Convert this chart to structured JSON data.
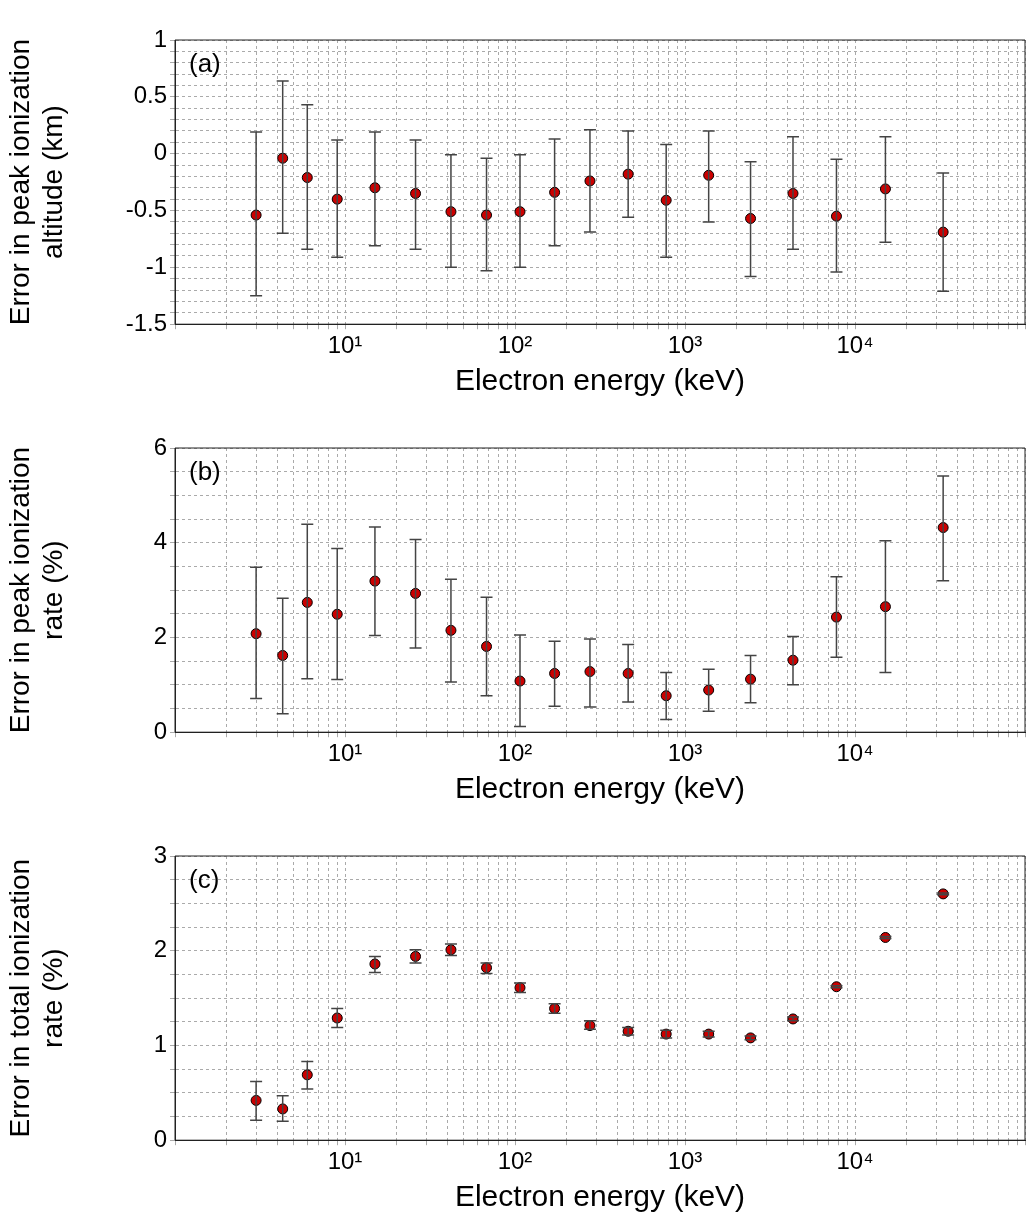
{
  "chart_data": [
    {
      "type": "scatter",
      "xlabel": "Electron energy (keV)",
      "ylabel": "Error in peak ionization altitude (km)",
      "annotations": [
        "(a)"
      ],
      "log": "x",
      "grid": true,
      "marker": "circle",
      "x": [
        3,
        4.3,
        6,
        9,
        15,
        26,
        42,
        68,
        107,
        171,
        276,
        463,
        775,
        1378,
        2430,
        4318,
        7780,
        15100,
        33000
      ],
      "xlim": [
        1,
        100000
      ],
      "xticks": [
        {
          "value": 1,
          "label": null
        },
        {
          "value": 2,
          "label": null
        },
        {
          "value": 3,
          "label": null
        },
        {
          "value": 4,
          "label": null
        },
        {
          "value": 5,
          "label": null
        },
        {
          "value": 6,
          "label": null
        },
        {
          "value": 7,
          "label": null
        },
        {
          "value": 8,
          "label": null
        },
        {
          "value": 9,
          "label": null
        },
        {
          "value": 10,
          "label": "10¹"
        },
        {
          "value": 20,
          "label": null
        },
        {
          "value": 30,
          "label": null
        },
        {
          "value": 40,
          "label": null
        },
        {
          "value": 50,
          "label": null
        },
        {
          "value": 60,
          "label": null
        },
        {
          "value": 70,
          "label": null
        },
        {
          "value": 80,
          "label": null
        },
        {
          "value": 90,
          "label": null
        },
        {
          "value": 100,
          "label": "10²"
        },
        {
          "value": 200,
          "label": null
        },
        {
          "value": 300,
          "label": null
        },
        {
          "value": 400,
          "label": null
        },
        {
          "value": 500,
          "label": null
        },
        {
          "value": 600,
          "label": null
        },
        {
          "value": 700,
          "label": null
        },
        {
          "value": 800,
          "label": null
        },
        {
          "value": 900,
          "label": null
        },
        {
          "value": 1000,
          "label": "10³"
        },
        {
          "value": 2000,
          "label": null
        },
        {
          "value": 3000,
          "label": null
        },
        {
          "value": 4000,
          "label": null
        },
        {
          "value": 5000,
          "label": null
        },
        {
          "value": 6000,
          "label": null
        },
        {
          "value": 7000,
          "label": null
        },
        {
          "value": 8000,
          "label": null
        },
        {
          "value": 9000,
          "label": null
        },
        {
          "value": 10000,
          "label": "10⁴"
        },
        {
          "value": 20000,
          "label": null
        },
        {
          "value": 30000,
          "label": null
        },
        {
          "value": 40000,
          "label": null
        },
        {
          "value": 50000,
          "label": null
        },
        {
          "value": 60000,
          "label": null
        },
        {
          "value": 70000,
          "label": null
        },
        {
          "value": 80000,
          "label": null
        },
        {
          "value": 90000,
          "label": null
        },
        {
          "value": 100000,
          "label": null
        }
      ],
      "ylim": [
        -1.5,
        1
      ],
      "yticks": [
        -1.5,
        {
          "value": -1.4,
          "label": null
        },
        {
          "value": -1.3,
          "label": null
        },
        {
          "value": -1.2,
          "label": null
        },
        {
          "value": -1.1,
          "label": null
        },
        -1,
        {
          "value": -0.9,
          "label": null
        },
        {
          "value": -0.8,
          "label": null
        },
        {
          "value": -0.7,
          "label": null
        },
        {
          "value": -0.6,
          "label": null
        },
        -0.5,
        {
          "value": -0.4,
          "label": null
        },
        {
          "value": -0.3,
          "label": null
        },
        {
          "value": -0.2,
          "label": null
        },
        {
          "value": -0.1,
          "label": null
        },
        0,
        {
          "value": 0.1,
          "label": null
        },
        {
          "value": 0.2,
          "label": null
        },
        {
          "value": 0.3,
          "label": null
        },
        {
          "value": 0.4,
          "label": null
        },
        0.5,
        {
          "value": 0.6,
          "label": null
        },
        {
          "value": 0.7,
          "label": null
        },
        {
          "value": 0.8,
          "label": null
        },
        {
          "value": 0.9,
          "label": null
        },
        1
      ],
      "series": [
        {
          "color": "#cc0000",
          "values": [
            -0.54,
            -0.04,
            -0.21,
            -0.4,
            -0.3,
            -0.35,
            -0.51,
            -0.54,
            -0.51,
            -0.34,
            -0.24,
            -0.18,
            -0.41,
            -0.19,
            -0.57,
            -0.35,
            -0.55,
            -0.31,
            -0.69
          ],
          "errors": [
            [
              -1.25,
              0.19
            ],
            [
              -0.7,
              0.64
            ],
            [
              -0.84,
              0.43
            ],
            [
              -0.91,
              0.12
            ],
            [
              -0.81,
              0.19
            ],
            [
              -0.84,
              0.12
            ],
            [
              -1,
              -0.01
            ],
            [
              -1.03,
              -0.04
            ],
            [
              -1,
              -0.01
            ],
            [
              -0.81,
              0.13
            ],
            [
              -0.69,
              0.21
            ],
            [
              -0.56,
              0.2
            ],
            [
              -0.91,
              0.08
            ],
            [
              -0.6,
              0.2
            ],
            [
              -1.08,
              -0.07
            ],
            [
              -0.84,
              0.15
            ],
            [
              -1.04,
              -0.05
            ],
            [
              -0.78,
              0.15
            ],
            [
              -1.21,
              -0.17
            ]
          ]
        }
      ]
    },
    {
      "type": "scatter",
      "xlabel": "Electron energy (keV)",
      "ylabel": "Error in peak ionization rate (%)",
      "annotations": [
        "(b)"
      ],
      "log": "x",
      "grid": true,
      "marker": "circle",
      "x": [
        3,
        4.3,
        6,
        9,
        15,
        26,
        42,
        68,
        107,
        171,
        276,
        463,
        775,
        1378,
        2430,
        4318,
        7780,
        15100,
        33000
      ],
      "xlim": [
        1,
        100000
      ],
      "xticks": [
        {
          "value": 1,
          "label": null
        },
        {
          "value": 2,
          "label": null
        },
        {
          "value": 3,
          "label": null
        },
        {
          "value": 4,
          "label": null
        },
        {
          "value": 5,
          "label": null
        },
        {
          "value": 6,
          "label": null
        },
        {
          "value": 7,
          "label": null
        },
        {
          "value": 8,
          "label": null
        },
        {
          "value": 9,
          "label": null
        },
        {
          "value": 10,
          "label": "10¹"
        },
        {
          "value": 20,
          "label": null
        },
        {
          "value": 30,
          "label": null
        },
        {
          "value": 40,
          "label": null
        },
        {
          "value": 50,
          "label": null
        },
        {
          "value": 60,
          "label": null
        },
        {
          "value": 70,
          "label": null
        },
        {
          "value": 80,
          "label": null
        },
        {
          "value": 90,
          "label": null
        },
        {
          "value": 100,
          "label": "10²"
        },
        {
          "value": 200,
          "label": null
        },
        {
          "value": 300,
          "label": null
        },
        {
          "value": 400,
          "label": null
        },
        {
          "value": 500,
          "label": null
        },
        {
          "value": 600,
          "label": null
        },
        {
          "value": 700,
          "label": null
        },
        {
          "value": 800,
          "label": null
        },
        {
          "value": 900,
          "label": null
        },
        {
          "value": 1000,
          "label": "10³"
        },
        {
          "value": 2000,
          "label": null
        },
        {
          "value": 3000,
          "label": null
        },
        {
          "value": 4000,
          "label": null
        },
        {
          "value": 5000,
          "label": null
        },
        {
          "value": 6000,
          "label": null
        },
        {
          "value": 7000,
          "label": null
        },
        {
          "value": 8000,
          "label": null
        },
        {
          "value": 9000,
          "label": null
        },
        {
          "value": 10000,
          "label": "10⁴"
        },
        {
          "value": 20000,
          "label": null
        },
        {
          "value": 30000,
          "label": null
        },
        {
          "value": 40000,
          "label": null
        },
        {
          "value": 50000,
          "label": null
        },
        {
          "value": 60000,
          "label": null
        },
        {
          "value": 70000,
          "label": null
        },
        {
          "value": 80000,
          "label": null
        },
        {
          "value": 90000,
          "label": null
        },
        {
          "value": 100000,
          "label": null
        }
      ],
      "ylim": [
        0,
        6
      ],
      "yticks": [
        0,
        {
          "value": 0.5,
          "label": null
        },
        {
          "value": 1,
          "label": null
        },
        {
          "value": 1.5,
          "label": null
        },
        2,
        {
          "value": 2.5,
          "label": null
        },
        {
          "value": 3,
          "label": null
        },
        {
          "value": 3.5,
          "label": null
        },
        4,
        {
          "value": 4.5,
          "label": null
        },
        {
          "value": 5,
          "label": null
        },
        {
          "value": 5.5,
          "label": null
        },
        6
      ],
      "series": [
        {
          "color": "#cc0000",
          "values": [
            2.08,
            1.62,
            2.74,
            2.49,
            3.19,
            2.93,
            2.15,
            1.81,
            1.08,
            1.24,
            1.28,
            1.24,
            0.77,
            0.89,
            1.12,
            1.52,
            2.43,
            2.65,
            4.32
          ],
          "errors": [
            [
              0.71,
              3.48
            ],
            [
              0.39,
              2.83
            ],
            [
              1.13,
              4.39
            ],
            [
              1.11,
              3.88
            ],
            [
              2.04,
              4.33
            ],
            [
              1.78,
              4.07
            ],
            [
              1.06,
              3.23
            ],
            [
              0.77,
              2.85
            ],
            [
              0.12,
              2.05
            ],
            [
              0.55,
              1.92
            ],
            [
              0.53,
              1.97
            ],
            [
              0.64,
              1.85
            ],
            [
              0.27,
              1.26
            ],
            [
              0.44,
              1.33
            ],
            [
              0.62,
              1.62
            ],
            [
              1,
              2.02
            ],
            [
              1.58,
              3.28
            ],
            [
              1.26,
              4.04
            ],
            [
              3.2,
              5.41
            ]
          ]
        }
      ]
    },
    {
      "type": "scatter",
      "xlabel": "Electron energy (keV)",
      "ylabel": "Error in total ionization rate (%)",
      "annotations": [
        "(c)"
      ],
      "log": "x",
      "grid": true,
      "marker": "circle",
      "x": [
        3,
        4.3,
        6,
        9,
        15,
        26,
        42,
        68,
        107,
        171,
        276,
        463,
        775,
        1378,
        2430,
        4318,
        7780,
        15100,
        33000
      ],
      "xlim": [
        1,
        100000
      ],
      "xticks": [
        {
          "value": 1,
          "label": null
        },
        {
          "value": 2,
          "label": null
        },
        {
          "value": 3,
          "label": null
        },
        {
          "value": 4,
          "label": null
        },
        {
          "value": 5,
          "label": null
        },
        {
          "value": 6,
          "label": null
        },
        {
          "value": 7,
          "label": null
        },
        {
          "value": 8,
          "label": null
        },
        {
          "value": 9,
          "label": null
        },
        {
          "value": 10,
          "label": "10¹"
        },
        {
          "value": 20,
          "label": null
        },
        {
          "value": 30,
          "label": null
        },
        {
          "value": 40,
          "label": null
        },
        {
          "value": 50,
          "label": null
        },
        {
          "value": 60,
          "label": null
        },
        {
          "value": 70,
          "label": null
        },
        {
          "value": 80,
          "label": null
        },
        {
          "value": 90,
          "label": null
        },
        {
          "value": 100,
          "label": "10²"
        },
        {
          "value": 200,
          "label": null
        },
        {
          "value": 300,
          "label": null
        },
        {
          "value": 400,
          "label": null
        },
        {
          "value": 500,
          "label": null
        },
        {
          "value": 600,
          "label": null
        },
        {
          "value": 700,
          "label": null
        },
        {
          "value": 800,
          "label": null
        },
        {
          "value": 900,
          "label": null
        },
        {
          "value": 1000,
          "label": "10³"
        },
        {
          "value": 2000,
          "label": null
        },
        {
          "value": 3000,
          "label": null
        },
        {
          "value": 4000,
          "label": null
        },
        {
          "value": 5000,
          "label": null
        },
        {
          "value": 6000,
          "label": null
        },
        {
          "value": 7000,
          "label": null
        },
        {
          "value": 8000,
          "label": null
        },
        {
          "value": 9000,
          "label": null
        },
        {
          "value": 10000,
          "label": "10⁴"
        },
        {
          "value": 20000,
          "label": null
        },
        {
          "value": 30000,
          "label": null
        },
        {
          "value": 40000,
          "label": null
        },
        {
          "value": 50000,
          "label": null
        },
        {
          "value": 60000,
          "label": null
        },
        {
          "value": 70000,
          "label": null
        },
        {
          "value": 80000,
          "label": null
        },
        {
          "value": 90000,
          "label": null
        },
        {
          "value": 100000,
          "label": null
        }
      ],
      "ylim": [
        0,
        3
      ],
      "yticks": [
        0,
        {
          "value": 0.25,
          "label": null
        },
        {
          "value": 0.5,
          "label": null
        },
        {
          "value": 0.75,
          "label": null
        },
        1,
        {
          "value": 1.25,
          "label": null
        },
        {
          "value": 1.5,
          "label": null
        },
        {
          "value": 1.75,
          "label": null
        },
        2,
        {
          "value": 2.25,
          "label": null
        },
        {
          "value": 2.5,
          "label": null
        },
        {
          "value": 2.75,
          "label": null
        },
        3
      ],
      "series": [
        {
          "color": "#cc0000",
          "values": [
            0.42,
            0.33,
            0.69,
            1.29,
            1.86,
            1.94,
            2.01,
            1.82,
            1.61,
            1.39,
            1.21,
            1.15,
            1.12,
            1.12,
            1.08,
            1.28,
            1.62,
            2.14,
            2.6
          ],
          "errors": [
            [
              0.21,
              0.62
            ],
            [
              0.2,
              0.47
            ],
            [
              0.54,
              0.83
            ],
            [
              1.19,
              1.39
            ],
            [
              1.77,
              1.94
            ],
            [
              1.87,
              2.01
            ],
            [
              1.95,
              2.07
            ],
            [
              1.76,
              1.87
            ],
            [
              1.56,
              1.66
            ],
            [
              1.34,
              1.44
            ],
            [
              1.17,
              1.26
            ],
            [
              1.11,
              1.19
            ],
            [
              1.08,
              1.16
            ],
            0.03,
            0.02,
            0.02,
            0.01,
            0.01,
            0.01
          ]
        }
      ]
    }
  ]
}
